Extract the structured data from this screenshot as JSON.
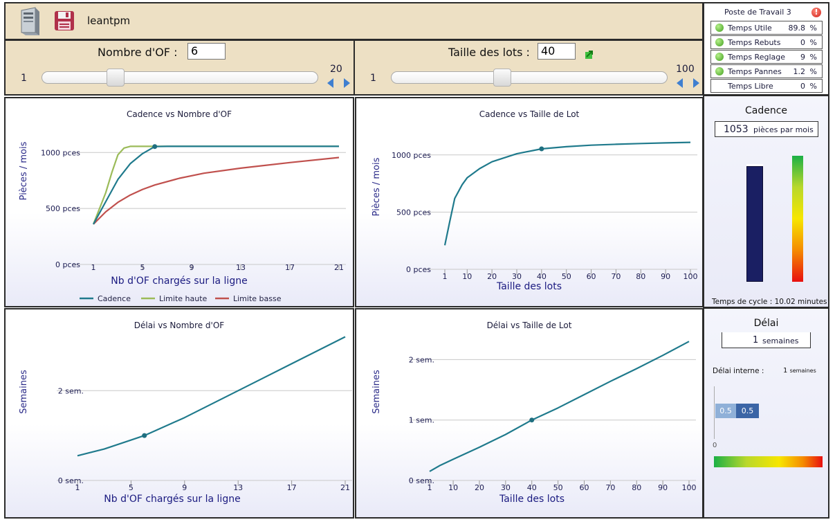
{
  "toolbar": {
    "app_name": "leantpm"
  },
  "of_control": {
    "label": "Nombre d'OF :",
    "value": "6",
    "min": "1",
    "max": "20"
  },
  "lot_control": {
    "label": "Taille des lots :",
    "value": "40",
    "min": "1",
    "max": "100"
  },
  "workstation": {
    "title": "Poste de Travail 3",
    "stats": [
      {
        "name": "Temps Utile",
        "value": "89.8",
        "unit": "%",
        "indicator": true
      },
      {
        "name": "Temps Rebuts",
        "value": "0",
        "unit": "%",
        "indicator": true
      },
      {
        "name": "Temps Reglage",
        "value": "9",
        "unit": "%",
        "indicator": true
      },
      {
        "name": "Temps Pannes",
        "value": "1.2",
        "unit": "%",
        "indicator": true
      },
      {
        "name": "Temps Libre",
        "value": "0",
        "unit": "%",
        "indicator": false
      }
    ]
  },
  "cadence_panel": {
    "title": "Cadence",
    "value": "1053",
    "unit": "pièces par mois",
    "cycle_time": "Temps de cycle : 10.02 minutes",
    "bar_fill_fraction": 0.98
  },
  "delai_panel": {
    "title": "Délai",
    "value": "1",
    "unit": "semaines",
    "internal_label": "Délai interne :",
    "internal_value": "1",
    "internal_unit": "semaines",
    "bar_segments": [
      "0.5",
      "0.5"
    ],
    "axis_zero": "0"
  },
  "colors": {
    "cadence": "#1f7a8c",
    "limite_haute": "#9bbb59",
    "limite_basse": "#c0504d"
  },
  "chart_data": [
    {
      "type": "line",
      "title": "Cadence vs Nombre d'OF",
      "xlabel": "Nb d'OF chargés sur la ligne",
      "ylabel": "Pièces / mois",
      "x_ticks": [
        "1",
        "5",
        "9",
        "13",
        "17",
        "21"
      ],
      "y_ticks": [
        "0 pces",
        "500 pces",
        "1000 pces"
      ],
      "xlim": [
        0,
        21
      ],
      "ylim": [
        0,
        1150
      ],
      "legend": "bottom",
      "series": [
        {
          "name": "Cadence",
          "color": "#1f7a8c",
          "x": [
            1,
            2,
            3,
            4,
            5,
            6,
            7,
            9,
            13,
            17,
            21
          ],
          "y": [
            360,
            560,
            760,
            900,
            990,
            1053,
            1055,
            1055,
            1055,
            1055,
            1055
          ]
        },
        {
          "name": "Limite haute",
          "color": "#9bbb59",
          "x": [
            1,
            2,
            2.5,
            3,
            3.5,
            4,
            5,
            9,
            13,
            17,
            21
          ],
          "y": [
            360,
            640,
            820,
            980,
            1040,
            1055,
            1055,
            1055,
            1055,
            1055,
            1055
          ]
        },
        {
          "name": "Limite basse",
          "color": "#c0504d",
          "x": [
            1,
            2,
            3,
            4,
            5,
            6,
            8,
            10,
            13,
            17,
            21
          ],
          "y": [
            360,
            470,
            555,
            620,
            670,
            710,
            770,
            815,
            860,
            910,
            955
          ]
        }
      ],
      "marker": {
        "x": 6,
        "y": 1053
      }
    },
    {
      "type": "line",
      "title": "Cadence vs Taille de Lot",
      "xlabel": "Taille des lots",
      "ylabel": "Pièces / mois",
      "x_ticks": [
        "1",
        "10",
        "20",
        "30",
        "40",
        "50",
        "60",
        "70",
        "80",
        "90",
        "100"
      ],
      "y_ticks": [
        "0 pces",
        "500 pces",
        "1000 pces"
      ],
      "ylim": [
        0,
        1150
      ],
      "grid": true,
      "series": [
        {
          "name": "Cadence",
          "color": "#1f7a8c",
          "x": [
            1,
            3,
            5,
            8,
            10,
            15,
            20,
            30,
            40,
            50,
            60,
            70,
            80,
            90,
            100
          ],
          "y": [
            210,
            420,
            620,
            740,
            800,
            880,
            940,
            1010,
            1053,
            1072,
            1085,
            1093,
            1100,
            1105,
            1110
          ]
        }
      ],
      "marker": {
        "x": 40,
        "y": 1053
      }
    },
    {
      "type": "line",
      "title": "Délai vs Nombre d'OF",
      "xlabel": "Nb d'OF chargés sur la ligne",
      "ylabel": "Semaines",
      "x_ticks": [
        "1",
        "5",
        "9",
        "13",
        "17",
        "21"
      ],
      "y_ticks": [
        "0 sem.",
        "2 sem."
      ],
      "ylim": [
        0,
        3.5
      ],
      "grid": true,
      "series": [
        {
          "name": "Délai",
          "color": "#1f7a8c",
          "x": [
            1,
            3,
            6,
            9,
            13,
            17,
            21
          ],
          "y": [
            0.55,
            0.7,
            1.0,
            1.4,
            2.0,
            2.6,
            3.2
          ]
        }
      ],
      "marker": {
        "x": 6,
        "y": 1.0
      }
    },
    {
      "type": "line",
      "title": "Délai vs Taille de Lot",
      "xlabel": "Taille des lots",
      "ylabel": "Semaines",
      "x_ticks": [
        "1",
        "10",
        "20",
        "30",
        "40",
        "50",
        "60",
        "70",
        "80",
        "90",
        "100"
      ],
      "y_ticks": [
        "0 sem.",
        "1 sem.",
        "2 sem."
      ],
      "ylim": [
        0,
        2.6
      ],
      "grid": true,
      "series": [
        {
          "name": "Délai",
          "color": "#1f7a8c",
          "x": [
            1,
            5,
            10,
            20,
            30,
            40,
            50,
            60,
            70,
            80,
            90,
            100
          ],
          "y": [
            0.15,
            0.25,
            0.35,
            0.55,
            0.76,
            1.0,
            1.2,
            1.42,
            1.64,
            1.85,
            2.07,
            2.3
          ]
        }
      ],
      "marker": {
        "x": 40,
        "y": 1.0
      }
    }
  ]
}
